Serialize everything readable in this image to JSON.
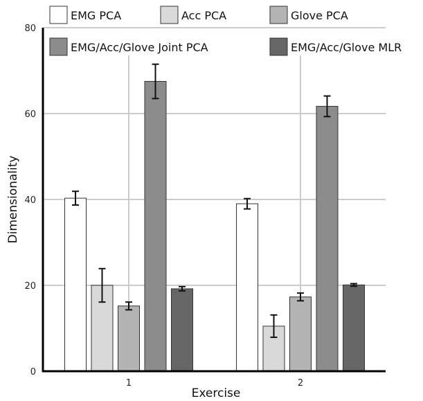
{
  "chart_data": {
    "type": "bar",
    "categories": [
      "1",
      "2"
    ],
    "xlabel": "Exercise",
    "ylabel": "Dimensionality",
    "ylim": [
      0,
      80
    ],
    "yticks": [
      "0",
      "20",
      "40",
      "60",
      "80"
    ],
    "grid": true,
    "legend_position": "top",
    "series": [
      {
        "name": "EMG PCA",
        "color": "#ffffff",
        "values": [
          40.3,
          39.0
        ],
        "errors": [
          1.6,
          1.2
        ]
      },
      {
        "name": "Acc PCA",
        "color": "#d9d9d9",
        "values": [
          20.0,
          10.5
        ],
        "errors": [
          3.9,
          2.6
        ]
      },
      {
        "name": "Glove PCA",
        "color": "#b3b3b3",
        "values": [
          15.2,
          17.3
        ],
        "errors": [
          0.9,
          0.9
        ]
      },
      {
        "name": "EMG/Acc/Glove Joint PCA",
        "color": "#8c8c8c",
        "values": [
          67.5,
          61.7
        ],
        "errors": [
          4.0,
          2.4
        ]
      },
      {
        "name": "EMG/Acc/Glove MLR",
        "color": "#666666",
        "values": [
          19.2,
          20.1
        ],
        "errors": [
          0.5,
          0.3
        ]
      }
    ]
  }
}
